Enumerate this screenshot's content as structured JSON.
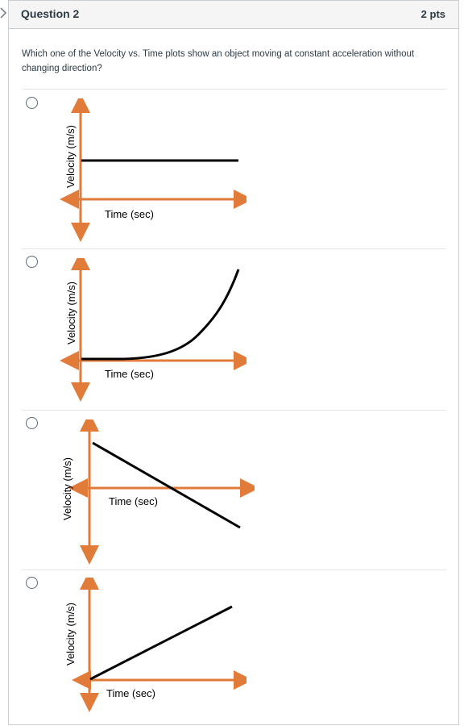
{
  "question": {
    "title": "Question 2",
    "points": "2 pts",
    "prompt": "Which one of the Velocity vs. Time plots show an object moving at constant acceleration without changing direction?"
  },
  "answers": [
    {
      "id": "a1",
      "y_label": "Velocity (m/s)",
      "x_label": "Time (sec)",
      "curve": "horizontal-line"
    },
    {
      "id": "a2",
      "y_label": "Velocity (m/s)",
      "x_label": "Time (sec)",
      "curve": "upward-curve"
    },
    {
      "id": "a3",
      "y_label": "Velocity (m/s)",
      "x_label": "Time (sec)",
      "curve": "decreasing-line"
    },
    {
      "id": "a4",
      "y_label": "Velocity (m/s)",
      "x_label": "Time (sec)",
      "curve": "increasing-line"
    }
  ],
  "colors": {
    "axis": "#e07b39",
    "curve": "#000000",
    "header_bg": "#f5f5f5"
  }
}
